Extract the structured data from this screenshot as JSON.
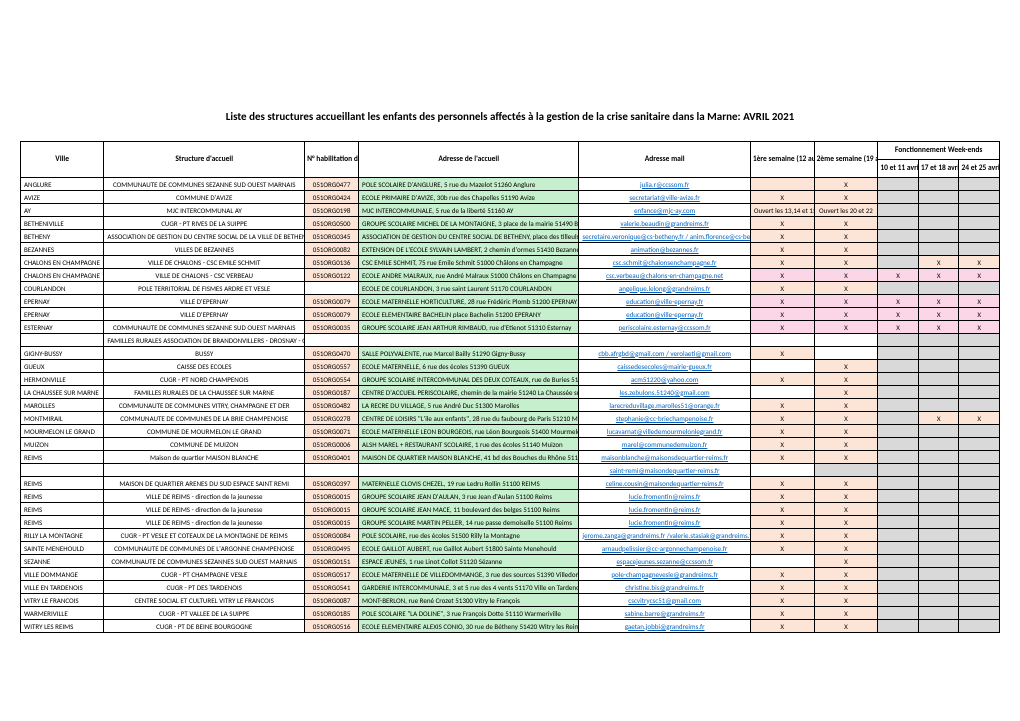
{
  "title": "Liste des structures accueillant les enfants des personnels affectés à la gestion de la crise sanitaire dans la Marne: AVRIL 2021",
  "colors": {
    "green": "#c6efce",
    "orange": "#fce4d6",
    "pink": "#fbd6e7",
    "gray": "#d9d9d9",
    "white": "#ffffff"
  },
  "headers": {
    "ville": "Ville",
    "structure": "Structure d'accueil",
    "hab": "N° habilitation du centre",
    "adresse": "Adresse de l'accueil",
    "mail": "Adresse mail",
    "sem1": "1ère semaine    (12 au 16 avril 2021)",
    "sem2": "2ème semaine         (19 au 23 avril 2021)",
    "we": "Fonctionnement Week-ends",
    "we1": "10 et 11 avril",
    "we2": "17 et 18 avril",
    "we3": "24 et 25 avril"
  },
  "rows": [
    {
      "ville": "ANGLURE",
      "structure": "COMMUNAUTE DE COMMUNES SEZANNE SUD OUEST MARNAIS",
      "hab": "051ORG0477",
      "adresse": "POLE SCOLAIRE D'ANGLURE, 5 rue du Mazelot 51260 Anglure",
      "mail": "julia.r@ccssom.fr",
      "sem1": "",
      "sem2": "X",
      "we": [
        "",
        "",
        ""
      ],
      "hc": "orange",
      "ac": "green",
      "s1c": "orange",
      "s2c": "orange",
      "wec": [
        "gray",
        "gray",
        "gray"
      ]
    },
    {
      "ville": "AVIZE",
      "structure": "COMMUNE D'AVIZE",
      "hab": "051ORG0424",
      "adresse": "ECOLE PRIMAIRE D'AVIZE, 30b rue des Chapelles 51190 Avize",
      "mail": "secretariat@ville-avize.fr",
      "sem1": "X",
      "sem2": "X",
      "we": [
        "",
        "",
        ""
      ],
      "hc": "orange",
      "ac": "green",
      "s1c": "orange",
      "s2c": "orange",
      "wec": [
        "gray",
        "gray",
        "gray"
      ]
    },
    {
      "ville": "AY",
      "structure": "MJC INTERCOMMUNAL AY",
      "hab": "051ORG0198",
      "adresse": "MJC INTERCOMMUNALE, 5 rue de la liberté 51160 AY",
      "mail": "enfance@mjc-ay.com",
      "sem1": "Ouvert les 13,14 et 15",
      "sem2": "Ouvert les 20 et 22",
      "we": [
        "",
        "",
        ""
      ],
      "hc": "orange",
      "ac": "green",
      "s1c": "orange",
      "s2c": "orange",
      "wec": [
        "gray",
        "gray",
        "gray"
      ]
    },
    {
      "ville": "BETHENIVILLE",
      "structure": "CUGR - PT RIVES DE LA SUIPPE",
      "hab": "051ORG0500",
      "adresse": "GROUPE SCOLAIRE MICHEL DE LA MONTAIGNE, 3 place de la mairie 51490 Bétheniville",
      "mail": "valerie.beaudin@grandreims.fr",
      "sem1": "X",
      "sem2": "X",
      "we": [
        "",
        "",
        ""
      ],
      "hc": "orange",
      "ac": "green",
      "s1c": "orange",
      "s2c": "orange",
      "wec": [
        "gray",
        "gray",
        "gray"
      ]
    },
    {
      "ville": "BETHENY",
      "structure": "ASSOCIATION DE GESTION DU CENTRE SOCIAL DE LA VILLE DE BETHENY",
      "hab": "051ORG0345",
      "adresse": "ASSOCIATION DE GESTION DU CENTRE SOCIAL DE BETHENY, place des tilleuls 51450 Bétheny",
      "mail": "secretaire.veronique@cs-betheny.fr / anim.florence@cs-betheny.fr",
      "sem1": "X",
      "sem2": "X",
      "we": [
        "",
        "",
        ""
      ],
      "hc": "orange",
      "ac": "green",
      "s1c": "orange",
      "s2c": "orange",
      "wec": [
        "gray",
        "gray",
        "gray"
      ]
    },
    {
      "ville": "BEZANNES",
      "structure": "VILLES DE BEZANNES",
      "hab": "051ORG0082",
      "adresse": "EXTENSION DE L'ECOLE SYLVAIN LAMBERT, 2 chemin d'ormes 51430 Bezannes",
      "mail": "animation@bezannes.fr",
      "sem1": "X",
      "sem2": "X",
      "we": [
        "",
        "",
        ""
      ],
      "hc": "orange",
      "ac": "green",
      "s1c": "orange",
      "s2c": "orange",
      "wec": [
        "gray",
        "gray",
        "gray"
      ]
    },
    {
      "ville": "CHALONS EN CHAMPAGNE",
      "structure": "VILLE DE CHALONS - CSC EMILE SCHMIT",
      "hab": "051ORG0136",
      "adresse": "CSC EMILE SCHMIT, 75 rue Emile Schmit 51000 Châlons en Champagne",
      "mail": "csc.schmit@chalonsenchampagne.fr",
      "sem1": "X",
      "sem2": "X",
      "we": [
        "",
        "X",
        "X"
      ],
      "hc": "orange",
      "ac": "green",
      "s1c": "orange",
      "s2c": "orange",
      "wec": [
        "gray",
        "orange",
        "orange"
      ]
    },
    {
      "ville": "CHALONS EN CHAMPAGNE",
      "structure": "VILLE DE CHALONS - CSC VERBEAU",
      "hab": "051ORG0122",
      "adresse": "ECOLE ANDRE MALRAUX, rue André Malraux 51000 Châlons en Champagne",
      "mail": "csc.verbeau@chalons-en-champagne.net",
      "sem1": "X",
      "sem2": "X",
      "we": [
        "X",
        "X",
        "X"
      ],
      "hc": "orange",
      "ac": "green",
      "s1c": "pink",
      "s2c": "pink",
      "wec": [
        "pink",
        "pink",
        "pink"
      ]
    },
    {
      "ville": "COURLANDON",
      "structure": "POLE TERRITORIAL DE FISMES ARDRE ET VESLE",
      "hab": "",
      "adresse": "ECOLE DE COURLANDON, 3 rue saint Laurent 51170 COURLANDON",
      "mail": "angelique.lelong@grandreims.fr",
      "sem1": "X",
      "sem2": "X",
      "we": [
        "",
        "",
        ""
      ],
      "hc": "white",
      "ac": "green",
      "s1c": "orange",
      "s2c": "orange",
      "wec": [
        "gray",
        "gray",
        "gray"
      ]
    },
    {
      "ville": "EPERNAY",
      "structure": "VILLE D'EPERNAY",
      "hab": "051ORG0079",
      "adresse": "ECOLE MATERNELLE HORTICULTURE, 28 rue Frédéric Plomb 51200 EPERNAY",
      "mail": "education@ville-epernay.fr",
      "sem1": "X",
      "sem2": "X",
      "we": [
        "X",
        "X",
        "X"
      ],
      "hc": "orange",
      "ac": "green",
      "s1c": "pink",
      "s2c": "pink",
      "wec": [
        "pink",
        "pink",
        "pink"
      ]
    },
    {
      "ville": "EPERNAY",
      "structure": "VILLE D'EPERNAY",
      "hab": "051ORG0079",
      "adresse": "ECOLE ELEMENTAIRE BACHELIN place Bachelin 51200 EPERANY",
      "mail": "education@ville-epernay.fr",
      "sem1": "X",
      "sem2": "X",
      "we": [
        "X",
        "X",
        "X"
      ],
      "hc": "orange",
      "ac": "green",
      "s1c": "pink",
      "s2c": "pink",
      "wec": [
        "pink",
        "pink",
        "pink"
      ]
    },
    {
      "ville": "ESTERNAY",
      "structure": "COMMUNAUTE DE COMMUNES SEZANNE SUD OUEST MARNAIS",
      "hab": "051ORG0035",
      "adresse": "GROUPE SCOLAIRE JEAN ARTHUR RIMBAUD, rue d'Etienot 51310 Esternay",
      "mail": "periscolaire.esternay@ccssom.fr",
      "sem1": "X",
      "sem2": "X",
      "we": [
        "X",
        "X",
        "X"
      ],
      "hc": "orange",
      "ac": "green",
      "s1c": "pink",
      "s2c": "pink",
      "wec": [
        "pink",
        "pink",
        "pink"
      ]
    },
    {
      "ville": "",
      "structure": "FAMILLES RURALES ASSOCIATION DE BRANDONVILLERS - DROSNAY - GIGNY",
      "hab": "",
      "adresse": "",
      "mail": "",
      "sem1": "",
      "sem2": "",
      "we": [
        "",
        "",
        ""
      ],
      "hc": "white",
      "ac": "white",
      "s1c": "white",
      "s2c": "white",
      "wec": [
        "gray",
        "gray",
        "gray"
      ]
    },
    {
      "ville": "GIGNY-BUSSY",
      "structure": "BUSSY",
      "hab": "051ORG0470",
      "adresse": "SALLE POLYVALENTE, rue Marcel Bailly 51290 Gigny-Bussy",
      "mail": "cbb.afrgbd@gmail.com / verolaeti@gmail.com",
      "sem1": "X",
      "sem2": "",
      "we": [
        "",
        "",
        ""
      ],
      "hc": "orange",
      "ac": "green",
      "s1c": "orange",
      "s2c": "white",
      "wec": [
        "gray",
        "gray",
        "gray"
      ]
    },
    {
      "ville": "GUEUX",
      "structure": "CAISSE DES ECOLES",
      "hab": "051ORG0557",
      "adresse": "ECOLE MATERNELLE, 6 rue des écoles 51390 GUEUX",
      "mail": "caissedesecoles@mairie-gueux.fr",
      "sem1": "",
      "sem2": "X",
      "we": [
        "",
        "",
        ""
      ],
      "hc": "orange",
      "ac": "green",
      "s1c": "white",
      "s2c": "orange",
      "wec": [
        "gray",
        "gray",
        "gray"
      ]
    },
    {
      "ville": "HERMONVILLE",
      "structure": "CUGR - PT NORD CHAMPENOIS",
      "hab": "051ORG0554",
      "adresse": "GROUPE SCOLAIRE INTERCOMMUNAL DES DEUX COTEAUX, rue de Buries 51220 Hermonville",
      "mail": "acm51220@yahoo.com",
      "sem1": "X",
      "sem2": "X",
      "we": [
        "",
        "",
        ""
      ],
      "hc": "orange",
      "ac": "green",
      "s1c": "orange",
      "s2c": "orange",
      "wec": [
        "gray",
        "gray",
        "gray"
      ]
    },
    {
      "ville": "LA CHAUSSEE SUR MARNE",
      "structure": "FAMILLES RURALES DE LA CHAUSSEE SUR MARNE",
      "hab": "051ORG0187",
      "adresse": "CENTRE D'ACCUEIL PERISCOLAIRE, chemin de la mairie 51240 La Chaussée sur Marne",
      "mail": "les.zebulons.51240@gmail.com",
      "sem1": "",
      "sem2": "X",
      "we": [
        "",
        "",
        ""
      ],
      "hc": "orange",
      "ac": "green",
      "s1c": "white",
      "s2c": "orange",
      "wec": [
        "gray",
        "gray",
        "gray"
      ]
    },
    {
      "ville": "MAROLLES",
      "structure": "COMMUNAUTE DE COMMUNES VITRY, CHAMPAGNE ET DER",
      "hab": "051ORG0482",
      "adresse": "LA RECRE DU VILLAGE, 5 rue André Duc 51300 Marolles",
      "mail": "larecreduvillage.marolles51@orange.fr",
      "sem1": "X",
      "sem2": "X",
      "we": [
        "",
        "",
        ""
      ],
      "hc": "orange",
      "ac": "green",
      "s1c": "orange",
      "s2c": "orange",
      "wec": [
        "gray",
        "gray",
        "gray"
      ]
    },
    {
      "ville": "MONTMIRAIL",
      "structure": "COMMUNAUTE DE COMMUNES DE LA BRIE CHAMPENOISE",
      "hab": "051ORG0278",
      "adresse": "CENTRE DE LOISIRS \"L'ile aux enfants\", 28 rue du faubourg de Paris 51210 Montmirail",
      "mail": "stephanie@cc-briechampenoise.fr",
      "sem1": "X",
      "sem2": "X",
      "we": [
        "",
        "X",
        "X"
      ],
      "hc": "orange",
      "ac": "green",
      "s1c": "orange",
      "s2c": "orange",
      "wec": [
        "gray",
        "orange",
        "orange"
      ]
    },
    {
      "ville": "MOURMELON LE GRAND",
      "structure": "COMMUNE DE MOURMELON LE GRAND",
      "hab": "051ORG0071",
      "adresse": "ECOLE MATERNELLE LEON BOURGEOIS, rue Léon Bourgeois 51400 Mourmelon-le-Grand",
      "mail": "lucavarnat@villedemourmelonlegrand.fr",
      "sem1": "X",
      "sem2": "X",
      "we": [
        "",
        "",
        ""
      ],
      "hc": "orange",
      "ac": "green",
      "s1c": "orange",
      "s2c": "orange",
      "wec": [
        "gray",
        "gray",
        "gray"
      ]
    },
    {
      "ville": "MUIZON",
      "structure": "COMMUNE DE MUIZON",
      "hab": "051ORG0006",
      "adresse": "ALSH MAREL + RESTAURANT SCOLAIRE, 1 rue des écoles 51140 Muizon",
      "mail": "marel@communedemuizon.fr",
      "sem1": "X",
      "sem2": "X",
      "we": [
        "",
        "",
        ""
      ],
      "hc": "orange",
      "ac": "green",
      "s1c": "orange",
      "s2c": "orange",
      "wec": [
        "gray",
        "gray",
        "gray"
      ]
    },
    {
      "ville": "REIMS",
      "structure": "Maison de quartier MAISON BLANCHE",
      "hab": "051ORG0401",
      "adresse": "MAISON DE QUARTIER MAISON BLANCHE, 41 bd des Bouches du Rhône 51100 REIMS",
      "mail": "maisonblanche@maisonsdequartier-reims.fr",
      "sem1": "X",
      "sem2": "X",
      "we": [
        "",
        "",
        ""
      ],
      "hc": "orange",
      "ac": "green",
      "s1c": "orange",
      "s2c": "orange",
      "wec": [
        "gray",
        "gray",
        "gray"
      ]
    },
    {
      "ville": "",
      "structure": "",
      "hab": "",
      "adresse": "",
      "mail": "saint-remi@maisondequartier-reims.fr",
      "sem1": "",
      "sem2": "",
      "we": [
        "",
        "",
        ""
      ],
      "hc": "white",
      "ac": "white",
      "s1c": "white",
      "s2c": "gray",
      "wec": [
        "gray",
        "gray",
        "gray"
      ]
    },
    {
      "ville": "REIMS",
      "structure": "MAISON DE QUARTIER ARENES DU SUD ESPACE SAINT REMI",
      "hab": "051ORG0397",
      "adresse": "MATERNELLE CLOVIS CHEZEL, 19 rue Ledru Rollin 51100 REIMS",
      "mail": "celine.cousin@maisondequartier-reims.fr",
      "sem1": "X",
      "sem2": "X",
      "we": [
        "",
        "",
        ""
      ],
      "hc": "orange",
      "ac": "green",
      "s1c": "orange",
      "s2c": "orange",
      "wec": [
        "gray",
        "gray",
        "gray"
      ]
    },
    {
      "ville": "REIMS",
      "structure": "VILLE DE REIMS - direction de la jeunesse",
      "hab": "051ORG0015",
      "adresse": "GROUPE SCOLAIRE JEAN D'AULAN, 3 rue Jean d'Aulan 51100 Reims",
      "mail": "lucie.fromentin@reims.fr",
      "sem1": "X",
      "sem2": "X",
      "we": [
        "",
        "",
        ""
      ],
      "hc": "orange",
      "ac": "green",
      "s1c": "orange",
      "s2c": "orange",
      "wec": [
        "gray",
        "gray",
        "gray"
      ]
    },
    {
      "ville": "REIMS",
      "structure": "VILLE DE REIMS - direction de la jeunesse",
      "hab": "051ORG0015",
      "adresse": "GROUPE SCOLAIRE JEAN MACE, 11 boulevard des belges 51100 Reims",
      "mail": "lucie.fromentin@reims.fr",
      "sem1": "X",
      "sem2": "X",
      "we": [
        "",
        "",
        ""
      ],
      "hc": "orange",
      "ac": "green",
      "s1c": "orange",
      "s2c": "orange",
      "wec": [
        "gray",
        "gray",
        "gray"
      ]
    },
    {
      "ville": "REIMS",
      "structure": "VILLE DE REIMS - direction de la jeunesse",
      "hab": "051ORG0015",
      "adresse": "GROUPE SCOLAIRE MARTIN PELLER, 14 rue passe demoiselle 51100 Reims",
      "mail": "lucie.fromentin@reims.fr",
      "sem1": "X",
      "sem2": "X",
      "we": [
        "",
        "",
        ""
      ],
      "hc": "orange",
      "ac": "green",
      "s1c": "orange",
      "s2c": "orange",
      "wec": [
        "gray",
        "gray",
        "gray"
      ]
    },
    {
      "ville": "RILLY LA MONTAGNE",
      "structure": "CUGR - PT VESLE ET COTEAUX DE LA MONTAGNE DE REIMS",
      "hab": "051ORG0084",
      "adresse": "POLE SCOLAIRE, rue des écoles 51500 Rilly la Montagne",
      "mail": "jerome.zanga@grandreims.fr /valerie.stasiak@grandreims.fr",
      "sem1": "X",
      "sem2": "X",
      "we": [
        "",
        "",
        ""
      ],
      "hc": "orange",
      "ac": "green",
      "s1c": "orange",
      "s2c": "orange",
      "wec": [
        "gray",
        "gray",
        "gray"
      ]
    },
    {
      "ville": "SAINTE MENEHOULD",
      "structure": "COMMUNAUTE DE COMMUNES DE L'ARGONNE CHAMPENOISE",
      "hab": "051ORG0495",
      "adresse": "ECOLE GAILLOT AUBERT, rue Gaillot Aubert 51800 Sainte Menehould",
      "mail": "arnaudpelissier@cc-argonnechampenoise.fr",
      "sem1": "X",
      "sem2": "X",
      "we": [
        "",
        "",
        ""
      ],
      "hc": "orange",
      "ac": "green",
      "s1c": "orange",
      "s2c": "orange",
      "wec": [
        "gray",
        "gray",
        "gray"
      ]
    },
    {
      "ville": "SEZANNE",
      "structure": "COMMUNAUTE DE COMMUNES SEZANNES SUD OUEST MARNAIS",
      "hab": "051ORG0151",
      "adresse": "ESPACE JEUNES, 1 rue Linot Collot 51120 Sézanne",
      "mail": "espacejeunes.sezanne@ccssom.fr",
      "sem1": "",
      "sem2": "X",
      "we": [
        "",
        "",
        ""
      ],
      "hc": "orange",
      "ac": "green",
      "s1c": "white",
      "s2c": "orange",
      "wec": [
        "gray",
        "gray",
        "gray"
      ]
    },
    {
      "ville": "VILLE DOMMANGE",
      "structure": "CUGR - PT CHAMPAGNE VESLE",
      "hab": "051ORG0517",
      "adresse": "ECOLE MATERNELLE DE VILLEDOMMANGE, 3 rue des sources 51390 Villedommange",
      "mail": "pole-champagnevesle@grandreims.fr",
      "sem1": "X",
      "sem2": "X",
      "we": [
        "",
        "",
        ""
      ],
      "hc": "orange",
      "ac": "green",
      "s1c": "orange",
      "s2c": "orange",
      "wec": [
        "gray",
        "gray",
        "gray"
      ]
    },
    {
      "ville": "VILLE EN TARDENOIS ",
      "structure": "CUGR - PT DES TARDENOIS",
      "hab": "051ORG0541",
      "adresse": "GARDERIE INTERCOMMUNALE, 3 et 5 rue des 4 vents 51170 Ville en Tardenois",
      "mail": "christine.bis@grandreims.fr",
      "sem1": "X",
      "sem2": "X",
      "we": [
        "",
        "",
        ""
      ],
      "hc": "orange",
      "ac": "green",
      "s1c": "orange",
      "s2c": "orange",
      "wec": [
        "gray",
        "gray",
        "gray"
      ]
    },
    {
      "ville": "VITRY LE FRANCOIS",
      "structure": "CENTRE SOCIAL ET CULTUREL VITRY LE FRANCOIS",
      "hab": "051ORG0087",
      "adresse": "MONT-BERLON, rue René Crozet 51300 Vitry le François",
      "mail": "cscvitrycsc51@gmail.com",
      "sem1": "X",
      "sem2": "X",
      "we": [
        "",
        "",
        ""
      ],
      "hc": "orange",
      "ac": "green",
      "s1c": "orange",
      "s2c": "orange",
      "wec": [
        "gray",
        "gray",
        "gray"
      ]
    },
    {
      "ville": "WARMERIVILLE",
      "structure": "CUGR - PT VALLEE DE LA SUIPPE",
      "hab": "051ORG0185",
      "adresse": "POLE SCOLAIRE \"LA DOLINE\", 3 rue François Dotte 51110 Warmeriville",
      "mail": "sabine.barre@grandreims.fr",
      "sem1": "X",
      "sem2": "X",
      "we": [
        "",
        "",
        ""
      ],
      "hc": "orange",
      "ac": "green",
      "s1c": "orange",
      "s2c": "orange",
      "wec": [
        "gray",
        "gray",
        "gray"
      ]
    },
    {
      "ville": "WITRY LES REIMS",
      "structure": "CUGR - PT DE BEINE BOURGOGNE",
      "hab": "051ORG0516",
      "adresse": "ECOLE ELEMENTAIRE ALEXIS CONIO, 30 rue de Bétheny 51420 Witry les Reims",
      "mail": "gaetan.jobbi@grandreims.fr",
      "sem1": "X",
      "sem2": "X",
      "we": [
        "",
        "",
        ""
      ],
      "hc": "orange",
      "ac": "green",
      "s1c": "orange",
      "s2c": "orange",
      "wec": [
        "gray",
        "gray",
        "gray"
      ]
    }
  ]
}
